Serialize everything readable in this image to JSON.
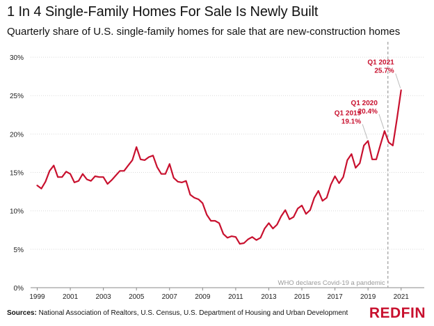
{
  "header": {
    "title": "1 In 4 Single-Family Homes For Sale Is Newly Built",
    "subtitle": "Quarterly share of U.S. single-family homes for sale that are new-construction homes"
  },
  "footer": {
    "sources_label": "Sources:",
    "sources_text": "National Association of Realtors, U.S. Census, U.S. Department of Housing and Urban Development",
    "brand": "REDFIN"
  },
  "colors": {
    "line": "#c8102e",
    "annotation": "#c8102e",
    "grid": "#d9d9d9",
    "vline": "#aaaaaa",
    "brand": "#c8102e"
  },
  "chart_data": {
    "type": "line",
    "title": "1 In 4 Single-Family Homes For Sale Is Newly Built",
    "subtitle": "Quarterly share of U.S. single-family homes for sale that are new-construction homes",
    "xlabel": "",
    "ylabel": "",
    "ylim": [
      0,
      32
    ],
    "y_ticks": [
      0,
      5,
      10,
      15,
      20,
      25,
      30
    ],
    "y_tick_labels": [
      "0%",
      "5%",
      "10%",
      "15%",
      "20%",
      "25%",
      "30%"
    ],
    "x_ticks": [
      1999,
      2001,
      2003,
      2005,
      2007,
      2009,
      2011,
      2013,
      2015,
      2017,
      2019,
      2021
    ],
    "x_tick_labels": [
      "1999",
      "2001",
      "2003",
      "2005",
      "2007",
      "2009",
      "2011",
      "2013",
      "2015",
      "2017",
      "2019",
      "2021"
    ],
    "xlim": [
      1998.6,
      2022.4
    ],
    "grid": "horizontal",
    "series": [
      {
        "values": [
          {
            "x": 1999.0,
            "y": 13.3
          },
          {
            "x": 1999.25,
            "y": 12.9
          },
          {
            "x": 1999.5,
            "y": 13.8
          },
          {
            "x": 1999.75,
            "y": 15.2
          },
          {
            "x": 2000.0,
            "y": 15.9
          },
          {
            "x": 2000.25,
            "y": 14.4
          },
          {
            "x": 2000.5,
            "y": 14.4
          },
          {
            "x": 2000.75,
            "y": 15.1
          },
          {
            "x": 2001.0,
            "y": 14.8
          },
          {
            "x": 2001.25,
            "y": 13.7
          },
          {
            "x": 2001.5,
            "y": 13.9
          },
          {
            "x": 2001.75,
            "y": 14.8
          },
          {
            "x": 2002.0,
            "y": 14.1
          },
          {
            "x": 2002.25,
            "y": 13.9
          },
          {
            "x": 2002.5,
            "y": 14.5
          },
          {
            "x": 2002.75,
            "y": 14.4
          },
          {
            "x": 2003.0,
            "y": 14.4
          },
          {
            "x": 2003.25,
            "y": 13.5
          },
          {
            "x": 2003.5,
            "y": 14.0
          },
          {
            "x": 2003.75,
            "y": 14.6
          },
          {
            "x": 2004.0,
            "y": 15.2
          },
          {
            "x": 2004.25,
            "y": 15.2
          },
          {
            "x": 2004.5,
            "y": 15.9
          },
          {
            "x": 2004.75,
            "y": 16.6
          },
          {
            "x": 2005.0,
            "y": 18.3
          },
          {
            "x": 2005.25,
            "y": 16.7
          },
          {
            "x": 2005.5,
            "y": 16.6
          },
          {
            "x": 2005.75,
            "y": 17.0
          },
          {
            "x": 2006.0,
            "y": 17.2
          },
          {
            "x": 2006.25,
            "y": 15.7
          },
          {
            "x": 2006.5,
            "y": 14.8
          },
          {
            "x": 2006.75,
            "y": 14.8
          },
          {
            "x": 2007.0,
            "y": 16.1
          },
          {
            "x": 2007.25,
            "y": 14.3
          },
          {
            "x": 2007.5,
            "y": 13.8
          },
          {
            "x": 2007.75,
            "y": 13.7
          },
          {
            "x": 2008.0,
            "y": 13.9
          },
          {
            "x": 2008.25,
            "y": 12.1
          },
          {
            "x": 2008.5,
            "y": 11.7
          },
          {
            "x": 2008.75,
            "y": 11.5
          },
          {
            "x": 2009.0,
            "y": 11.0
          },
          {
            "x": 2009.25,
            "y": 9.5
          },
          {
            "x": 2009.5,
            "y": 8.7
          },
          {
            "x": 2009.75,
            "y": 8.7
          },
          {
            "x": 2010.0,
            "y": 8.4
          },
          {
            "x": 2010.25,
            "y": 7.0
          },
          {
            "x": 2010.5,
            "y": 6.5
          },
          {
            "x": 2010.75,
            "y": 6.7
          },
          {
            "x": 2011.0,
            "y": 6.6
          },
          {
            "x": 2011.25,
            "y": 5.7
          },
          {
            "x": 2011.5,
            "y": 5.8
          },
          {
            "x": 2011.75,
            "y": 6.3
          },
          {
            "x": 2012.0,
            "y": 6.6
          },
          {
            "x": 2012.25,
            "y": 6.2
          },
          {
            "x": 2012.5,
            "y": 6.5
          },
          {
            "x": 2012.75,
            "y": 7.7
          },
          {
            "x": 2013.0,
            "y": 8.4
          },
          {
            "x": 2013.25,
            "y": 7.7
          },
          {
            "x": 2013.5,
            "y": 8.2
          },
          {
            "x": 2013.75,
            "y": 9.3
          },
          {
            "x": 2014.0,
            "y": 10.1
          },
          {
            "x": 2014.25,
            "y": 8.9
          },
          {
            "x": 2014.5,
            "y": 9.2
          },
          {
            "x": 2014.75,
            "y": 10.3
          },
          {
            "x": 2015.0,
            "y": 10.7
          },
          {
            "x": 2015.25,
            "y": 9.6
          },
          {
            "x": 2015.5,
            "y": 10.1
          },
          {
            "x": 2015.75,
            "y": 11.7
          },
          {
            "x": 2016.0,
            "y": 12.6
          },
          {
            "x": 2016.25,
            "y": 11.3
          },
          {
            "x": 2016.5,
            "y": 11.7
          },
          {
            "x": 2016.75,
            "y": 13.4
          },
          {
            "x": 2017.0,
            "y": 14.5
          },
          {
            "x": 2017.25,
            "y": 13.6
          },
          {
            "x": 2017.5,
            "y": 14.4
          },
          {
            "x": 2017.75,
            "y": 16.6
          },
          {
            "x": 2018.0,
            "y": 17.4
          },
          {
            "x": 2018.25,
            "y": 15.6
          },
          {
            "x": 2018.5,
            "y": 16.2
          },
          {
            "x": 2018.75,
            "y": 18.5
          },
          {
            "x": 2019.0,
            "y": 19.1
          },
          {
            "x": 2019.25,
            "y": 16.7
          },
          {
            "x": 2019.5,
            "y": 16.7
          },
          {
            "x": 2019.75,
            "y": 18.6
          },
          {
            "x": 2020.0,
            "y": 20.4
          },
          {
            "x": 2020.25,
            "y": 18.9
          },
          {
            "x": 2020.5,
            "y": 18.5
          },
          {
            "x": 2020.75,
            "y": 22.0
          },
          {
            "x": 2021.0,
            "y": 25.7
          }
        ]
      }
    ],
    "annotations": [
      {
        "x": 2019.0,
        "y": 19.1,
        "label": "Q1 2019",
        "value": "19.1%"
      },
      {
        "x": 2020.0,
        "y": 20.4,
        "label": "Q1 2020",
        "value": "20.4%"
      },
      {
        "x": 2021.0,
        "y": 25.7,
        "label": "Q1 2021",
        "value": "25.7%"
      }
    ],
    "reference_line": {
      "x": 2020.2,
      "label": "WHO declares Covid-19 a pandemic"
    }
  }
}
